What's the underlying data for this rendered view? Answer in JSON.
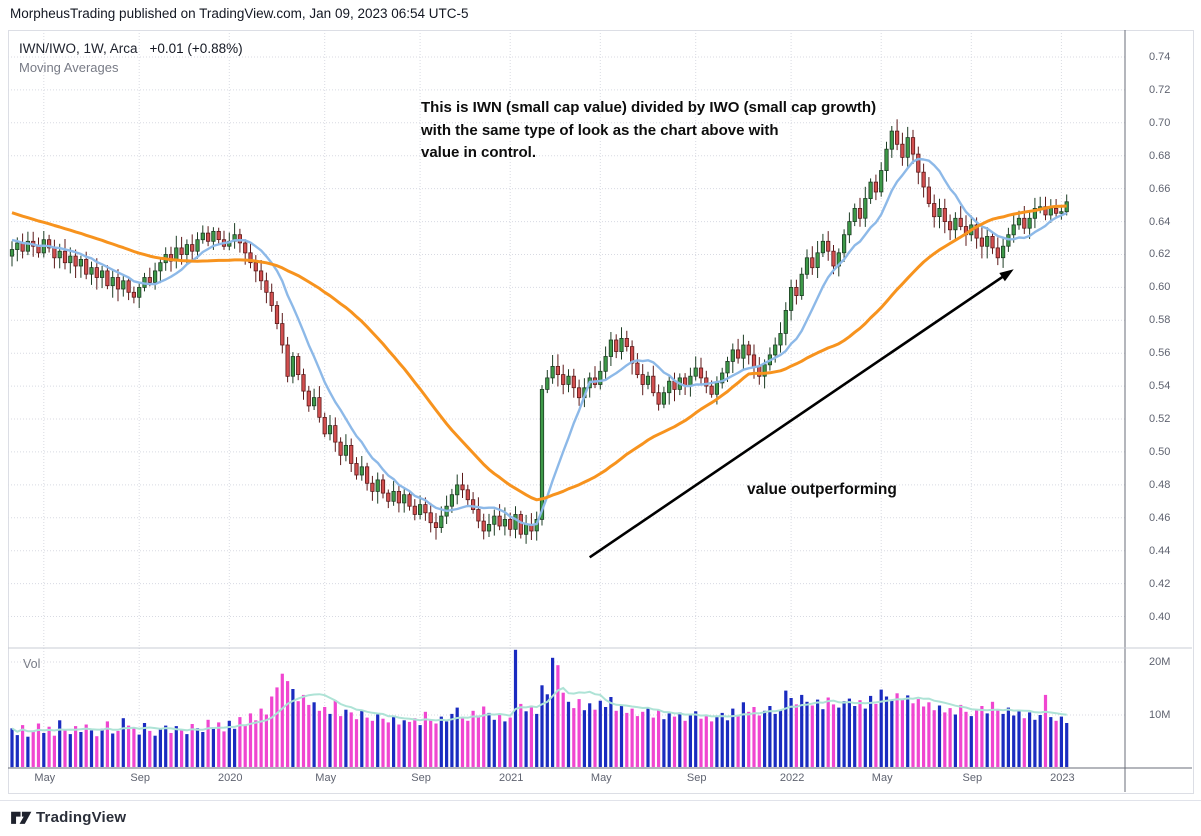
{
  "publish_bar": {
    "text": "MorpheusTrading published on TradingView.com, Jan 09, 2023 06:54 UTC-5"
  },
  "header": {
    "symbol_line": "IWN/IWO, 1W, Arca",
    "change": "+0.01 (+0.88%)",
    "indicator_label": "Moving Averages"
  },
  "annotations": {
    "note_line1": "This is IWN (small cap value) divided by IWO (small cap growth)",
    "note_line2": "with the same type of look as the chart above with",
    "note_line3": "value in control.",
    "arrow_label": "value outperforming"
  },
  "volume_pane": {
    "label": "Vol",
    "tick_labels": [
      "20M",
      "10M"
    ]
  },
  "footer": {
    "brand": "TradingView"
  },
  "colors": {
    "candle_up_fill": "#3d9948",
    "candle_up_stroke": "#1d3d24",
    "candle_down_fill": "#d24f4f",
    "candle_down_stroke": "#5c1a1a",
    "ma_fast": "#8db9e8",
    "ma_slow": "#f7931e",
    "vol_up": "#1a2bc0",
    "vol_down": "#f046d0",
    "vol_ma": "#aee3d6",
    "grid": "#d8dae2",
    "axis_line": "#6a6e79",
    "pane_divider": "#c9ccd4",
    "arrow": "#000000",
    "axis_text": "#5f6370"
  },
  "chart_data": {
    "type": "candlestick",
    "title": "IWN/IWO ratio weekly chart with moving averages and volume",
    "symbol": "IWN/IWO",
    "interval": "1W",
    "exchange": "Arca",
    "price_axis": {
      "min": 0.4,
      "max": 0.74,
      "step": 0.02,
      "side": "right"
    },
    "volume_axis": {
      "ticks_millions": [
        10,
        20
      ]
    },
    "time_axis": {
      "labels": [
        "May",
        "Sep",
        "2020",
        "May",
        "Sep",
        "2021",
        "May",
        "Sep",
        "2022",
        "May",
        "Sep",
        "2023"
      ],
      "week_index": [
        6,
        24,
        41,
        59,
        77,
        94,
        111,
        129,
        147,
        164,
        181,
        198
      ]
    },
    "indicators": {
      "name": "Moving Averages",
      "ma_fast_period": 10,
      "ma_slow_period": 40,
      "ma_seed": {
        "from": 0.668,
        "to": 0.625,
        "n": 40
      }
    },
    "grid": true,
    "last_change_text": "+0.01 (+0.88%)",
    "weekly_closes": [
      0.623,
      0.627,
      0.622,
      0.628,
      0.625,
      0.621,
      0.629,
      0.624,
      0.618,
      0.622,
      0.615,
      0.619,
      0.613,
      0.617,
      0.608,
      0.612,
      0.606,
      0.61,
      0.601,
      0.606,
      0.599,
      0.604,
      0.597,
      0.594,
      0.6,
      0.606,
      0.603,
      0.61,
      0.615,
      0.62,
      0.616,
      0.624,
      0.62,
      0.626,
      0.622,
      0.629,
      0.633,
      0.628,
      0.634,
      0.629,
      0.625,
      0.628,
      0.632,
      0.627,
      0.621,
      0.615,
      0.61,
      0.604,
      0.597,
      0.589,
      0.578,
      0.565,
      0.546,
      0.558,
      0.547,
      0.537,
      0.528,
      0.533,
      0.521,
      0.511,
      0.516,
      0.506,
      0.498,
      0.504,
      0.493,
      0.486,
      0.491,
      0.481,
      0.476,
      0.483,
      0.475,
      0.47,
      0.476,
      0.469,
      0.474,
      0.467,
      0.462,
      0.468,
      0.463,
      0.457,
      0.454,
      0.461,
      0.467,
      0.474,
      0.48,
      0.477,
      0.471,
      0.465,
      0.458,
      0.452,
      0.456,
      0.461,
      0.455,
      0.459,
      0.453,
      0.462,
      0.45,
      0.456,
      0.452,
      0.459,
      0.538,
      0.545,
      0.552,
      0.547,
      0.541,
      0.546,
      0.539,
      0.533,
      0.539,
      0.545,
      0.541,
      0.549,
      0.558,
      0.568,
      0.561,
      0.569,
      0.564,
      0.554,
      0.547,
      0.541,
      0.546,
      0.536,
      0.529,
      0.536,
      0.543,
      0.538,
      0.545,
      0.54,
      0.546,
      0.551,
      0.545,
      0.54,
      0.535,
      0.542,
      0.548,
      0.555,
      0.562,
      0.557,
      0.565,
      0.559,
      0.552,
      0.546,
      0.553,
      0.559,
      0.565,
      0.572,
      0.586,
      0.6,
      0.595,
      0.608,
      0.618,
      0.612,
      0.621,
      0.628,
      0.622,
      0.613,
      0.621,
      0.632,
      0.64,
      0.648,
      0.642,
      0.654,
      0.664,
      0.658,
      0.671,
      0.684,
      0.695,
      0.687,
      0.679,
      0.691,
      0.681,
      0.67,
      0.661,
      0.651,
      0.643,
      0.648,
      0.64,
      0.635,
      0.642,
      0.637,
      0.632,
      0.638,
      0.63,
      0.625,
      0.631,
      0.624,
      0.618,
      0.625,
      0.632,
      0.638,
      0.642,
      0.636,
      0.642,
      0.648,
      0.649,
      0.644,
      0.648,
      0.645,
      0.646,
      0.652
    ],
    "volume_millions": [
      7.5,
      6.2,
      8.1,
      5.9,
      7.0,
      8.4,
      6.6,
      7.8,
      6.1,
      9.0,
      7.2,
      6.4,
      7.9,
      6.8,
      8.2,
      7.1,
      6.0,
      7.4,
      8.8,
      6.5,
      7.0,
      9.4,
      8.0,
      7.6,
      6.3,
      8.5,
      7.0,
      6.1,
      7.3,
      8.0,
      6.6,
      7.9,
      7.1,
      6.4,
      8.3,
      7.5,
      6.8,
      9.1,
      7.7,
      8.6,
      6.9,
      8.9,
      7.4,
      9.6,
      8.1,
      10.3,
      9.0,
      11.2,
      10.1,
      13.5,
      15.2,
      17.8,
      16.4,
      14.9,
      12.6,
      13.8,
      11.9,
      12.4,
      10.8,
      11.5,
      10.2,
      12.8,
      9.8,
      11.0,
      10.5,
      9.2,
      10.8,
      9.5,
      8.9,
      10.1,
      9.3,
      8.6,
      9.9,
      8.2,
      9.0,
      8.7,
      9.4,
      8.1,
      10.6,
      9.0,
      8.4,
      9.7,
      8.8,
      10.2,
      11.4,
      9.6,
      8.9,
      10.8,
      9.9,
      11.6,
      10.4,
      9.1,
      10.0,
      8.8,
      9.5,
      22.3,
      12.1,
      10.7,
      11.8,
      10.2,
      15.6,
      13.9,
      20.8,
      19.4,
      14.2,
      12.5,
      11.3,
      13.0,
      10.9,
      12.2,
      11.0,
      12.7,
      11.5,
      13.4,
      10.8,
      11.9,
      10.4,
      11.2,
      9.8,
      10.6,
      11.4,
      9.5,
      10.9,
      9.2,
      10.3,
      9.7,
      10.5,
      8.9,
      9.9,
      10.7,
      9.3,
      10.1,
      8.8,
      9.6,
      10.4,
      9.0,
      11.2,
      9.8,
      12.4,
      10.6,
      11.5,
      9.9,
      10.8,
      11.7,
      10.2,
      11.0,
      14.6,
      13.2,
      12.0,
      13.8,
      12.5,
      11.8,
      12.9,
      11.1,
      13.3,
      12.0,
      11.4,
      12.6,
      13.1,
      11.7,
      12.8,
      11.2,
      13.6,
      12.1,
      14.8,
      13.5,
      12.7,
      14.1,
      12.9,
      13.7,
      12.2,
      13.0,
      11.6,
      12.4,
      10.9,
      11.8,
      10.5,
      11.3,
      10.1,
      11.9,
      10.6,
      9.8,
      10.9,
      11.7,
      10.3,
      12.5,
      11.0,
      10.2,
      11.4,
      9.9,
      10.8,
      9.4,
      10.5,
      9.1,
      10.0,
      13.8,
      9.6,
      8.9,
      9.7,
      8.5
    ],
    "arrow": {
      "x1_week": 109,
      "y1_price": 0.436,
      "x2_week": 189,
      "y2_price": 0.611
    }
  }
}
